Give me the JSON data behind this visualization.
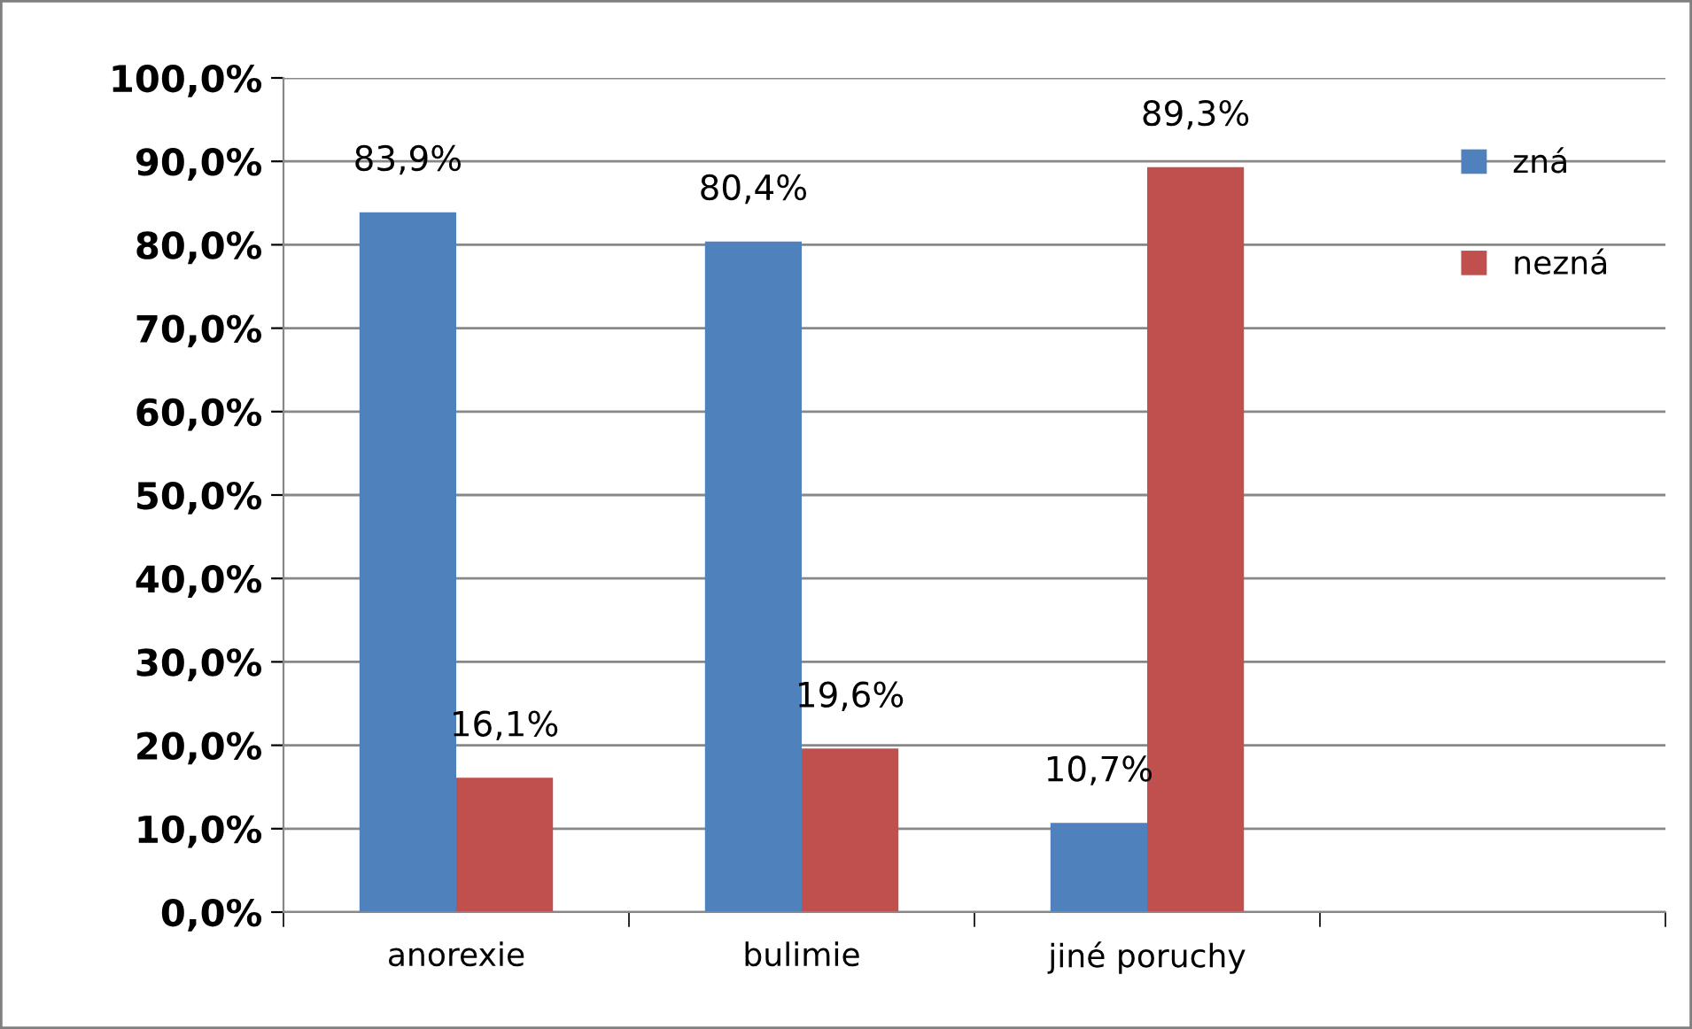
{
  "chart_data": {
    "type": "bar",
    "categories": [
      "anorexie",
      "bulimie",
      "jiné poruchy",
      null
    ],
    "series": [
      {
        "name": "zná",
        "color": "#4f81bd",
        "values": [
          83.9,
          80.4,
          10.7,
          null
        ],
        "value_labels": [
          "83,9%",
          "80,4%",
          "10,7%",
          null
        ]
      },
      {
        "name": "nezná",
        "color": "#c0504d",
        "values": [
          16.1,
          19.6,
          89.3,
          null
        ],
        "value_labels": [
          "16,1%",
          "19,6%",
          "89,3%",
          null
        ]
      }
    ],
    "ylim": [
      0,
      100
    ],
    "yticks": [
      {
        "value": 0,
        "label": "0,0%"
      },
      {
        "value": 10,
        "label": "10,0%"
      },
      {
        "value": 20,
        "label": "20,0%"
      },
      {
        "value": 30,
        "label": "30,0%"
      },
      {
        "value": 40,
        "label": "40,0%"
      },
      {
        "value": 50,
        "label": "50,0%"
      },
      {
        "value": 60,
        "label": "60,0%"
      },
      {
        "value": 70,
        "label": "70,0%"
      },
      {
        "value": 80,
        "label": "80,0%"
      },
      {
        "value": 90,
        "label": "90,0%"
      },
      {
        "value": 100,
        "label": "100,0%"
      }
    ],
    "grid": "y",
    "legend": "top right"
  }
}
